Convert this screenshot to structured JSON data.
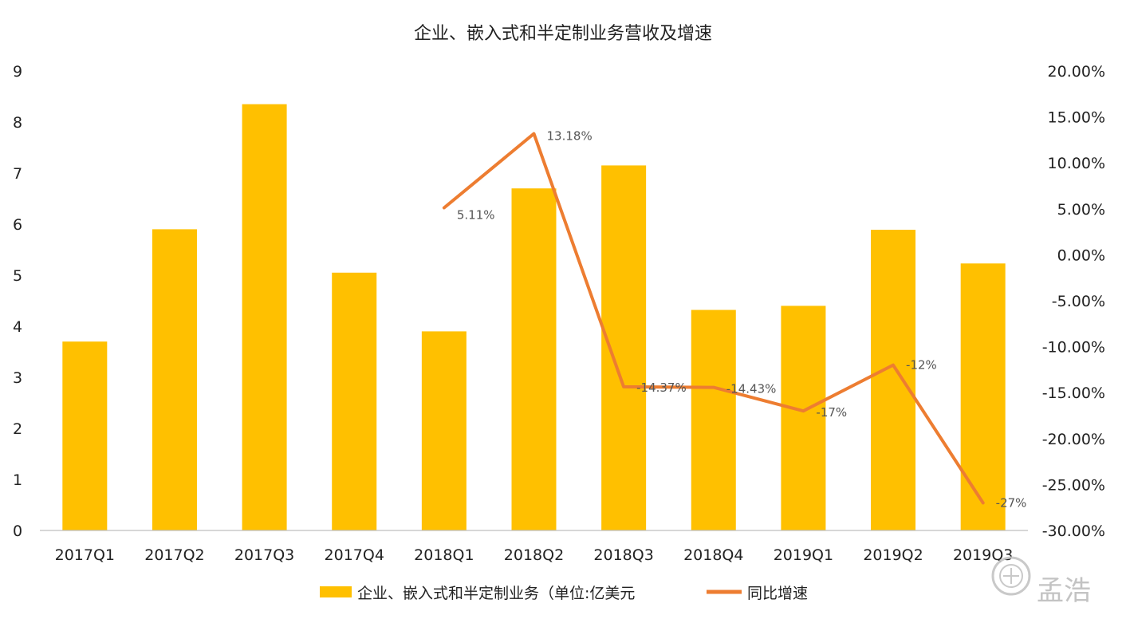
{
  "chart_data": {
    "type": "bar",
    "title": "企业、嵌入式和半定制业务营收及增速",
    "categories": [
      "2017Q1",
      "2017Q2",
      "2017Q3",
      "2017Q4",
      "2018Q1",
      "2018Q2",
      "2018Q3",
      "2018Q4",
      "2019Q1",
      "2019Q2",
      "2019Q3"
    ],
    "y_left": {
      "ylim": [
        0,
        9
      ],
      "ticks": [
        "0",
        "1",
        "2",
        "3",
        "4",
        "5",
        "6",
        "7",
        "8",
        "9"
      ]
    },
    "y_right": {
      "ylim": [
        -30,
        20
      ],
      "ticks": [
        "-30.00%",
        "-25.00%",
        "-20.00%",
        "-15.00%",
        "-10.00%",
        "-5.00%",
        "0.00%",
        "5.00%",
        "10.00%",
        "15.00%",
        "20.00%"
      ]
    },
    "series": [
      {
        "name": "企业、嵌入式和半定制业务（单位:亿美元",
        "type": "bar",
        "axis": "left",
        "color": "#FFC000",
        "values": [
          3.7,
          5.9,
          8.35,
          5.05,
          3.9,
          6.7,
          7.15,
          4.32,
          4.4,
          5.89,
          5.23
        ]
      },
      {
        "name": "同比增速",
        "type": "line",
        "axis": "right",
        "color": "#ED7D31",
        "values": [
          null,
          null,
          null,
          null,
          5.11,
          13.18,
          -14.37,
          -14.43,
          -17,
          -12,
          -27
        ],
        "labels": [
          null,
          null,
          null,
          null,
          "5.11%",
          "13.18%",
          "-14.37%",
          "-14.43%",
          "-17%",
          "-12%",
          "-27%"
        ]
      }
    ],
    "grid": false,
    "legend": "bottom"
  },
  "watermark": {
    "text": "孟浩",
    "icon": "coin-seal-icon"
  }
}
